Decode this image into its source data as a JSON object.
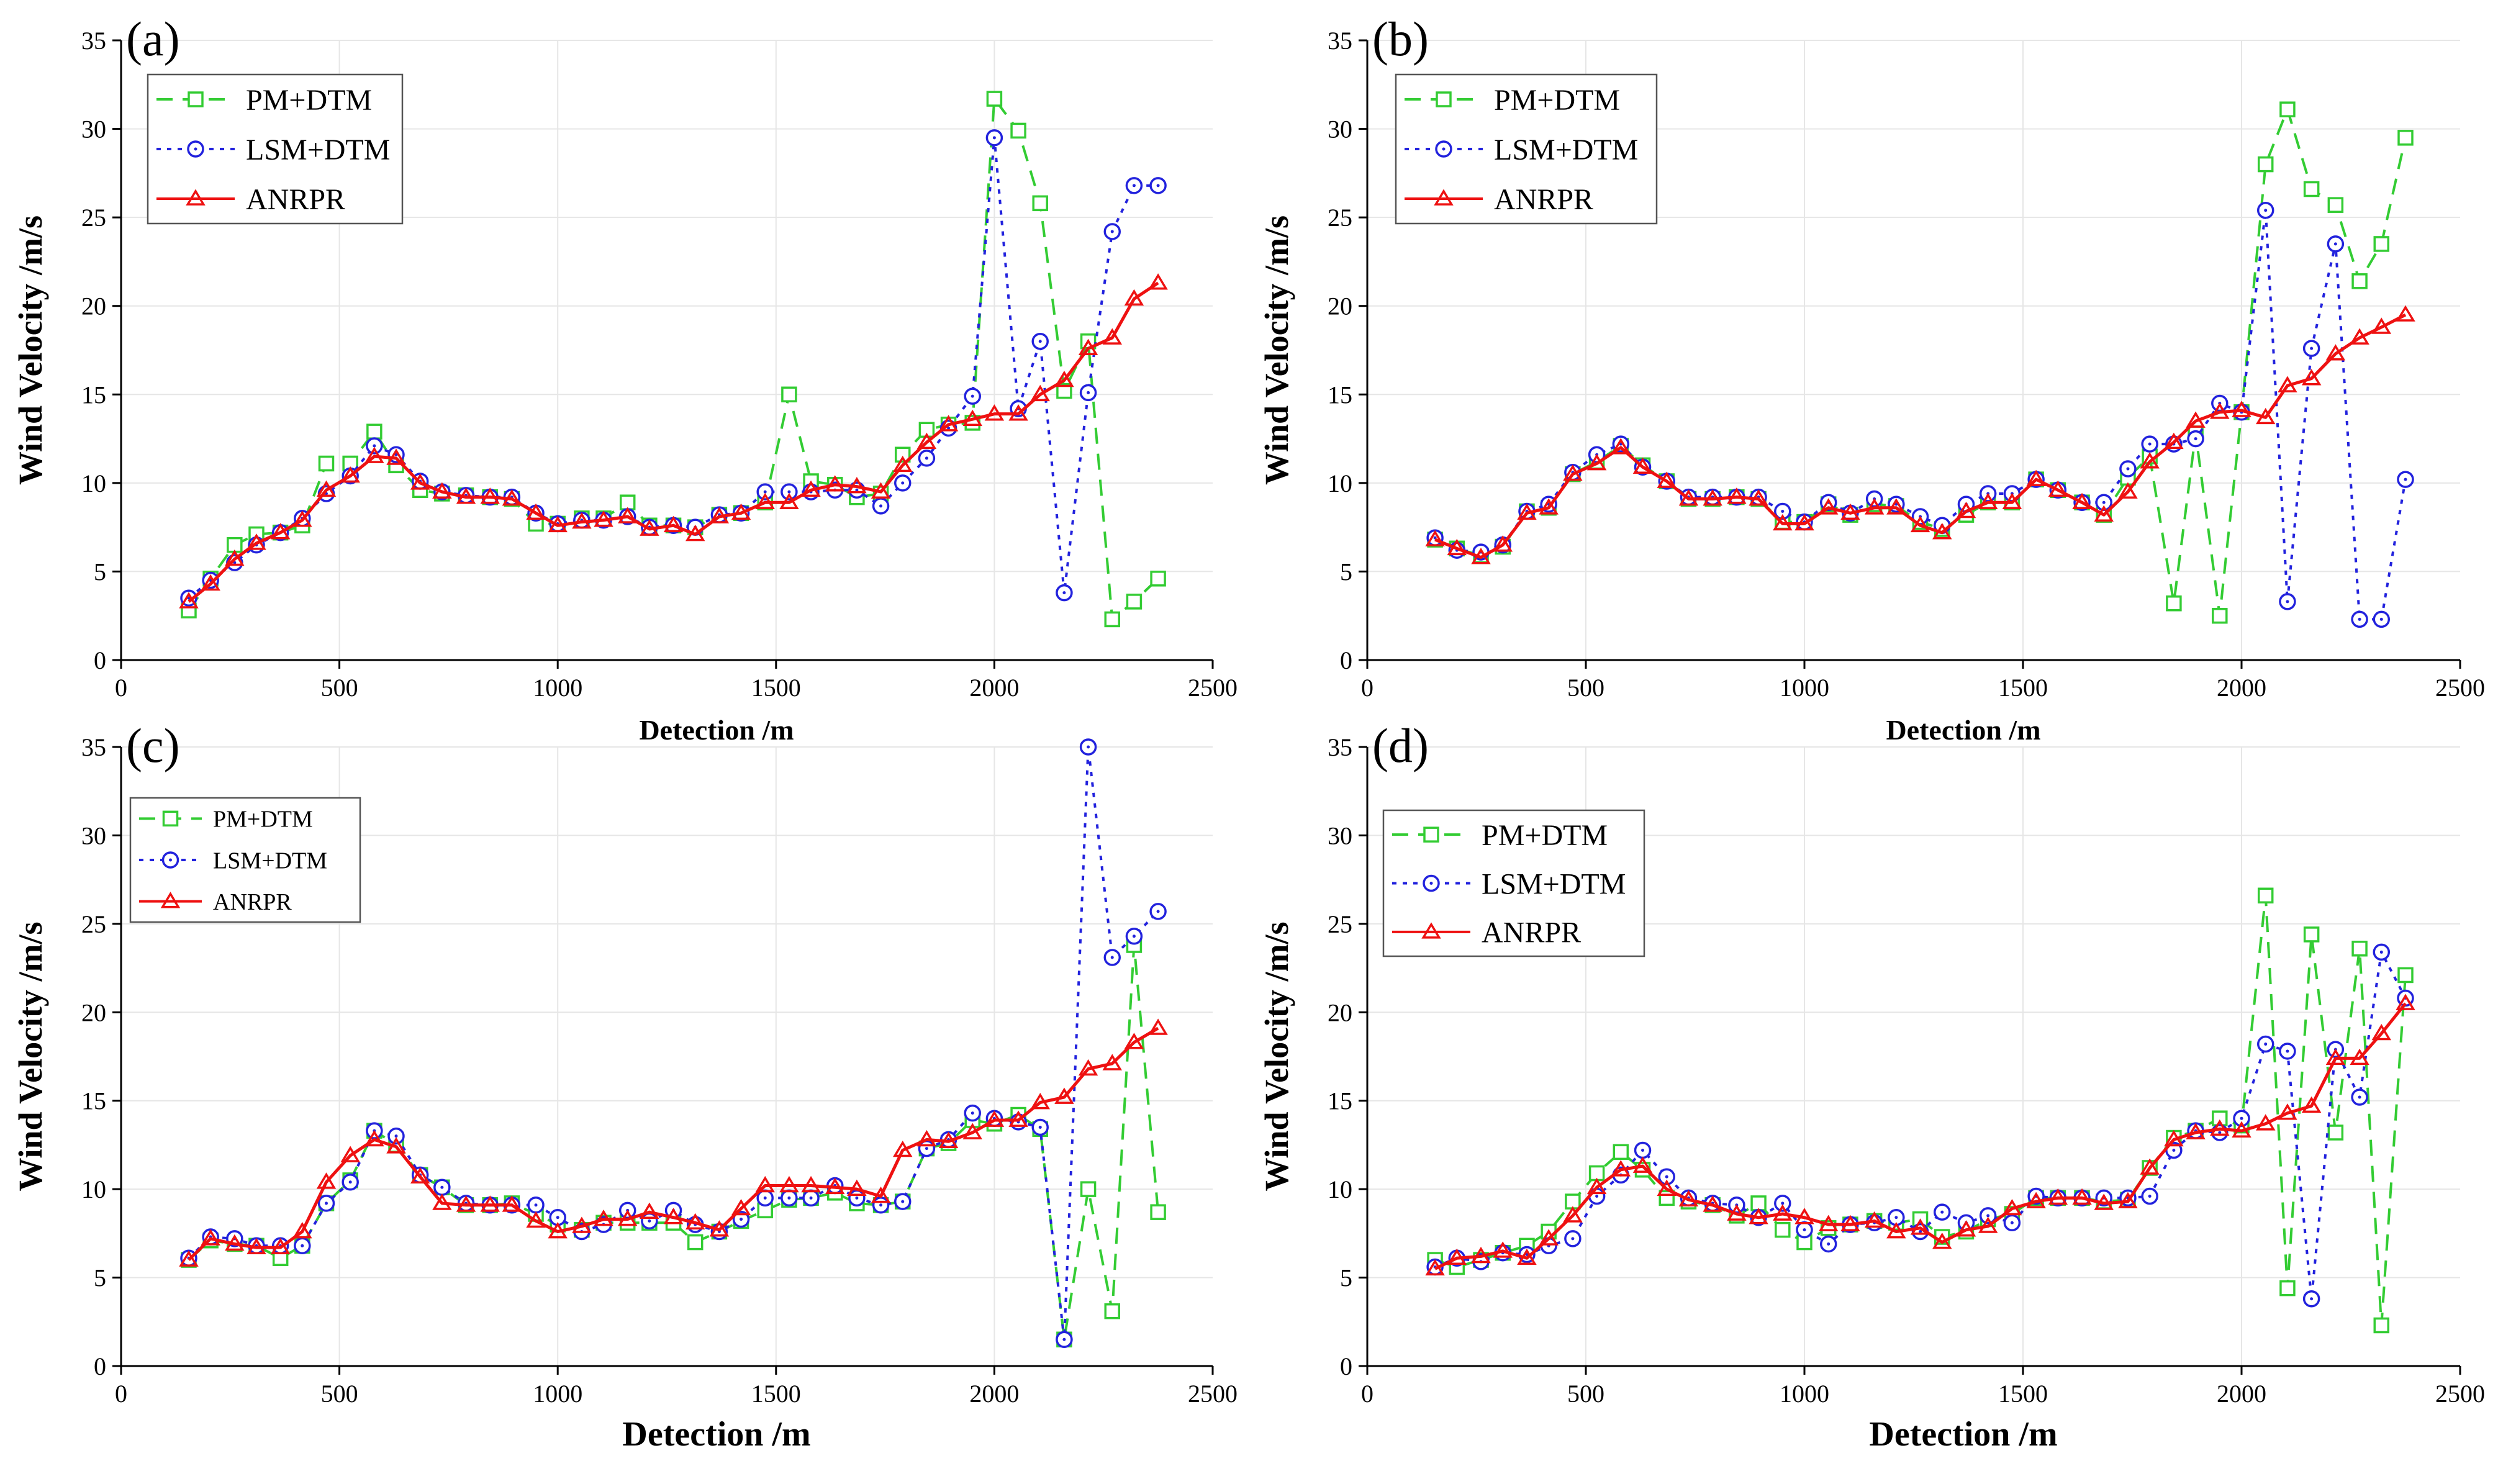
{
  "colors": {
    "pm": "#33cc33",
    "lsm": "#2222dd",
    "anrpr": "#ee1111",
    "axis": "#000000",
    "grid": "#e6e6e6"
  },
  "chart_data": [
    {
      "type": "line",
      "panel_label": "(a)",
      "xlabel": "Detection /m",
      "ylabel": "Wind Velocity /m/s",
      "xlim": [
        0,
        2500
      ],
      "ylim": [
        0,
        35
      ],
      "xticks": [
        0,
        500,
        1000,
        1500,
        2000,
        2500
      ],
      "yticks": [
        0,
        5,
        10,
        15,
        20,
        25,
        30,
        35
      ],
      "grid": false,
      "legend_position": "top-left",
      "x": [
        155,
        205,
        260,
        310,
        365,
        415,
        470,
        525,
        580,
        630,
        685,
        735,
        790,
        845,
        895,
        950,
        1000,
        1055,
        1105,
        1160,
        1210,
        1265,
        1315,
        1370,
        1420,
        1475,
        1530,
        1580,
        1635,
        1685,
        1740,
        1790,
        1845,
        1895,
        1950,
        2000,
        2055,
        2105,
        2160,
        2215,
        2270,
        2320,
        2375
      ],
      "series": [
        {
          "name": "PM+DTM",
          "marker": "square",
          "dash": "dashed",
          "values": [
            2.8,
            4.6,
            6.5,
            7.1,
            7.2,
            7.6,
            11.1,
            11.1,
            12.9,
            11.0,
            9.6,
            9.4,
            9.3,
            9.2,
            9.1,
            7.7,
            7.7,
            8.0,
            8.0,
            8.9,
            7.6,
            7.6,
            7.5,
            8.2,
            8.3,
            8.9,
            15.0,
            10.1,
            9.9,
            9.2,
            9.4,
            11.6,
            13.0,
            13.3,
            13.4,
            31.7,
            29.9,
            25.8,
            15.2,
            18.0,
            2.3,
            3.3,
            4.6
          ]
        },
        {
          "name": "LSM+DTM",
          "marker": "circle",
          "dash": "dotted",
          "values": [
            3.5,
            4.5,
            5.5,
            6.5,
            7.2,
            8.0,
            9.4,
            10.4,
            12.1,
            11.6,
            10.1,
            9.5,
            9.3,
            9.2,
            9.2,
            8.3,
            7.7,
            7.9,
            7.9,
            8.1,
            7.5,
            7.6,
            7.5,
            8.2,
            8.3,
            9.5,
            9.5,
            9.5,
            9.6,
            9.6,
            8.7,
            10.0,
            11.4,
            13.1,
            14.9,
            29.5,
            14.2,
            18.0,
            3.8,
            15.1,
            24.2,
            26.8,
            26.8
          ]
        },
        {
          "name": "ANRPR",
          "marker": "triangle",
          "dash": "solid",
          "values": [
            3.3,
            4.3,
            5.7,
            6.6,
            7.2,
            7.9,
            9.6,
            10.4,
            11.5,
            11.4,
            10.0,
            9.5,
            9.2,
            9.2,
            9.1,
            8.3,
            7.6,
            7.8,
            7.9,
            8.1,
            7.4,
            7.6,
            7.1,
            8.1,
            8.3,
            8.9,
            8.9,
            9.6,
            9.9,
            9.8,
            9.5,
            11.0,
            12.3,
            13.3,
            13.6,
            13.9,
            13.9,
            15.0,
            15.8,
            17.6,
            18.2,
            20.4,
            21.3
          ]
        }
      ]
    },
    {
      "type": "line",
      "panel_label": "(b)",
      "xlabel": "Detection /m",
      "ylabel": "Wind Velocity /m/s",
      "xlim": [
        0,
        2500
      ],
      "ylim": [
        0,
        35
      ],
      "xticks": [
        0,
        500,
        1000,
        1500,
        2000,
        2500
      ],
      "yticks": [
        0,
        5,
        10,
        15,
        20,
        25,
        30,
        35
      ],
      "grid": false,
      "legend_position": "top-left",
      "x": [
        155,
        205,
        260,
        310,
        365,
        415,
        470,
        525,
        580,
        630,
        685,
        735,
        790,
        845,
        895,
        950,
        1000,
        1055,
        1105,
        1160,
        1210,
        1265,
        1315,
        1370,
        1420,
        1475,
        1530,
        1580,
        1635,
        1685,
        1740,
        1790,
        1845,
        1895,
        1950,
        2000,
        2055,
        2105,
        2160,
        2215,
        2270,
        2320,
        2375
      ],
      "series": [
        {
          "name": "PM+DTM",
          "marker": "square",
          "dash": "dashed",
          "values": [
            6.8,
            6.3,
            5.9,
            6.4,
            8.4,
            8.6,
            10.5,
            11.2,
            12.1,
            11.0,
            10.1,
            9.1,
            9.1,
            9.2,
            9.1,
            7.8,
            7.8,
            8.8,
            8.2,
            8.8,
            8.7,
            7.8,
            7.4,
            8.2,
            8.9,
            8.9,
            10.2,
            9.6,
            8.9,
            8.2,
            10.3,
            11.5,
            3.2,
            12.8,
            2.5,
            14.0,
            28.0,
            31.1,
            26.6,
            25.7,
            21.4,
            23.5,
            29.5
          ]
        },
        {
          "name": "LSM+DTM",
          "marker": "circle",
          "dash": "dotted",
          "values": [
            6.9,
            6.2,
            6.1,
            6.5,
            8.4,
            8.8,
            10.6,
            11.6,
            12.2,
            10.9,
            10.1,
            9.2,
            9.2,
            9.2,
            9.2,
            8.4,
            7.8,
            8.9,
            8.3,
            9.1,
            8.8,
            8.1,
            7.6,
            8.8,
            9.4,
            9.4,
            10.2,
            9.6,
            8.9,
            8.9,
            10.8,
            12.2,
            12.2,
            12.5,
            14.5,
            14.0,
            25.4,
            3.3,
            17.6,
            23.5,
            2.3,
            2.3,
            10.2
          ]
        },
        {
          "name": "ANRPR",
          "marker": "triangle",
          "dash": "solid",
          "values": [
            6.8,
            6.3,
            5.8,
            6.5,
            8.3,
            8.6,
            10.5,
            11.1,
            12.0,
            10.9,
            10.1,
            9.1,
            9.1,
            9.2,
            9.1,
            7.7,
            7.7,
            8.6,
            8.3,
            8.6,
            8.6,
            7.6,
            7.2,
            8.4,
            8.9,
            8.9,
            10.2,
            9.6,
            8.9,
            8.2,
            9.5,
            11.2,
            12.3,
            13.5,
            14.0,
            14.1,
            13.7,
            15.5,
            15.9,
            17.3,
            18.2,
            18.8,
            19.5
          ]
        }
      ]
    },
    {
      "type": "line",
      "panel_label": "(c)",
      "xlabel": "Detection /m",
      "ylabel": "Wind Velocity /m/s",
      "xlim": [
        0,
        2500
      ],
      "ylim": [
        0,
        35
      ],
      "xticks": [
        0,
        500,
        1000,
        1500,
        2000,
        2500
      ],
      "yticks": [
        0,
        5,
        10,
        15,
        20,
        25,
        30,
        35
      ],
      "grid": false,
      "legend_position": "top-left",
      "x": [
        155,
        205,
        260,
        310,
        365,
        415,
        470,
        525,
        580,
        630,
        685,
        735,
        790,
        845,
        895,
        950,
        1000,
        1055,
        1105,
        1160,
        1210,
        1265,
        1315,
        1370,
        1420,
        1475,
        1530,
        1580,
        1635,
        1685,
        1740,
        1790,
        1845,
        1895,
        1950,
        2000,
        2055,
        2105,
        2160,
        2215,
        2270,
        2320,
        2375
      ],
      "series": [
        {
          "name": "PM+DTM",
          "marker": "square",
          "dash": "dashed",
          "values": [
            6.0,
            7.1,
            6.9,
            6.8,
            6.1,
            6.8,
            9.2,
            10.5,
            13.3,
            12.5,
            10.8,
            10.1,
            9.1,
            9.1,
            9.2,
            8.6,
            8.0,
            7.7,
            8.1,
            8.1,
            8.1,
            8.1,
            7.0,
            7.6,
            8.2,
            8.8,
            9.4,
            9.5,
            9.8,
            9.2,
            9.1,
            9.3,
            12.3,
            12.6,
            13.9,
            13.7,
            14.2,
            13.4,
            1.5,
            10.0,
            3.1,
            23.8,
            8.7
          ]
        },
        {
          "name": "LSM+DTM",
          "marker": "circle",
          "dash": "dotted",
          "values": [
            6.1,
            7.3,
            7.2,
            6.8,
            6.8,
            6.8,
            9.2,
            10.4,
            13.3,
            13.0,
            10.8,
            10.1,
            9.2,
            9.1,
            9.1,
            9.1,
            8.4,
            7.6,
            8.0,
            8.8,
            8.2,
            8.8,
            8.0,
            7.6,
            8.3,
            9.5,
            9.5,
            9.5,
            10.2,
            9.5,
            9.1,
            9.3,
            12.3,
            12.8,
            14.3,
            14.0,
            13.8,
            13.5,
            1.5,
            35.0,
            23.1,
            24.3,
            25.7
          ]
        },
        {
          "name": "ANRPR",
          "marker": "triangle",
          "dash": "solid",
          "values": [
            6.0,
            7.2,
            6.9,
            6.7,
            6.7,
            7.6,
            10.4,
            11.9,
            12.8,
            12.4,
            10.7,
            9.2,
            9.1,
            9.1,
            9.1,
            8.2,
            7.6,
            7.9,
            8.3,
            8.3,
            8.7,
            8.4,
            8.1,
            7.7,
            8.9,
            10.2,
            10.2,
            10.2,
            10.1,
            10.0,
            9.6,
            12.2,
            12.8,
            12.7,
            13.2,
            13.9,
            13.9,
            14.9,
            15.2,
            16.8,
            17.1,
            18.3,
            19.1
          ]
        }
      ]
    },
    {
      "type": "line",
      "panel_label": "(d)",
      "xlabel": "Detection /m",
      "ylabel": "Wind Velocity /m/s",
      "xlim": [
        0,
        2500
      ],
      "ylim": [
        0,
        35
      ],
      "xticks": [
        0,
        500,
        1000,
        1500,
        2000,
        2500
      ],
      "yticks": [
        0,
        5,
        10,
        15,
        20,
        25,
        30,
        35
      ],
      "grid": false,
      "legend_position": "top-left",
      "x": [
        155,
        205,
        260,
        310,
        365,
        415,
        470,
        525,
        580,
        630,
        685,
        735,
        790,
        845,
        895,
        950,
        1000,
        1055,
        1105,
        1160,
        1210,
        1265,
        1315,
        1370,
        1420,
        1475,
        1530,
        1580,
        1635,
        1685,
        1740,
        1790,
        1845,
        1895,
        1950,
        2000,
        2055,
        2105,
        2160,
        2215,
        2270,
        2320,
        2375
      ],
      "series": [
        {
          "name": "PM+DTM",
          "marker": "square",
          "dash": "dashed",
          "values": [
            6.0,
            5.6,
            6.0,
            6.4,
            6.8,
            7.6,
            9.3,
            10.9,
            12.1,
            11.1,
            9.5,
            9.3,
            9.1,
            8.5,
            9.2,
            7.7,
            7.0,
            7.8,
            8.0,
            8.2,
            8.1,
            8.3,
            7.3,
            7.6,
            8.3,
            8.6,
            9.5,
            9.5,
            9.5,
            9.3,
            9.4,
            11.2,
            12.9,
            13.3,
            14.0,
            13.6,
            26.6,
            4.4,
            24.4,
            13.2,
            23.6,
            2.3,
            22.1
          ]
        },
        {
          "name": "LSM+DTM",
          "marker": "circle",
          "dash": "dotted",
          "values": [
            5.6,
            6.1,
            5.9,
            6.4,
            6.3,
            6.8,
            7.2,
            9.6,
            10.8,
            12.2,
            10.7,
            9.5,
            9.2,
            9.1,
            8.4,
            9.2,
            7.7,
            6.9,
            8.0,
            8.1,
            8.4,
            7.6,
            8.7,
            8.1,
            8.5,
            8.1,
            9.6,
            9.5,
            9.5,
            9.5,
            9.5,
            9.6,
            12.2,
            13.3,
            13.2,
            14.0,
            18.2,
            17.8,
            3.8,
            17.9,
            15.2,
            23.4,
            20.8
          ]
        },
        {
          "name": "ANRPR",
          "marker": "triangle",
          "dash": "solid",
          "values": [
            5.5,
            6.1,
            6.2,
            6.5,
            6.1,
            7.2,
            8.5,
            10.1,
            11.1,
            11.3,
            10.0,
            9.4,
            9.1,
            8.6,
            8.4,
            8.6,
            8.4,
            8.0,
            8.0,
            8.2,
            7.6,
            7.8,
            7.0,
            7.7,
            7.9,
            8.9,
            9.3,
            9.5,
            9.5,
            9.2,
            9.3,
            11.2,
            12.8,
            13.2,
            13.4,
            13.3,
            13.7,
            14.3,
            14.7,
            17.4,
            17.4,
            18.8,
            20.5
          ]
        }
      ]
    }
  ]
}
